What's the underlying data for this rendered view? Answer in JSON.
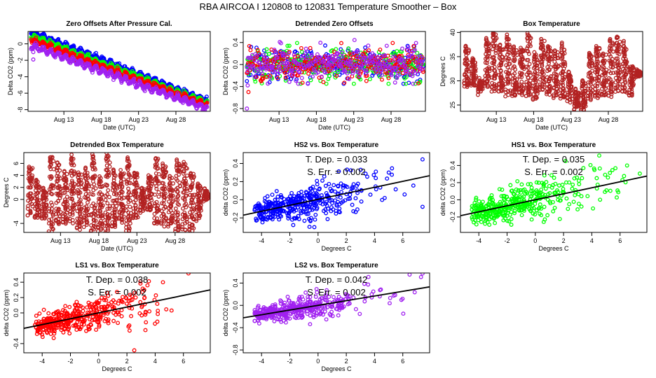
{
  "page": {
    "title": "RBA   AIRCOA I   120808 to 120831   Temperature Smoother – Box"
  },
  "colors": {
    "HS2": "#0000ff",
    "HS1": "#00ff00",
    "LS1": "#ff0000",
    "LS2": "#a020f0",
    "box_temperature": "#b22222",
    "fit_line": "#000000"
  },
  "chart_data": [
    {
      "id": "zero-offsets",
      "type": "scatter",
      "title": "Zero Offsets After Pressure Cal.",
      "xlabel": "Date (UTC)",
      "ylabel": "Delta CO2 (ppm)",
      "x_kind": "date",
      "xlim": [
        8.2,
        32.6
      ],
      "ylim": [
        -8.2,
        1.5
      ],
      "xticks": [
        13,
        18,
        23,
        28
      ],
      "xtick_labels": [
        "Aug 13",
        "Aug 18",
        "Aug 23",
        "Aug 28"
      ],
      "yticks": [
        -8,
        -6,
        -4,
        -2,
        0
      ],
      "ytick_labels": [
        "-8",
        "-6",
        "-4",
        "-2",
        "0"
      ],
      "series": [
        {
          "name": "HS2",
          "color_key": "HS2",
          "trend": {
            "start": 1.1,
            "end": -7.3
          },
          "diurnal_amp": 0.25,
          "offset": 0.35
        },
        {
          "name": "HS1",
          "color_key": "HS1",
          "trend": {
            "start": 0.8,
            "end": -7.4
          },
          "diurnal_amp": 0.25,
          "offset": 0.15
        },
        {
          "name": "LS1",
          "color_key": "LS1",
          "trend": {
            "start": 0.5,
            "end": -7.5
          },
          "diurnal_amp": 0.25,
          "offset": 0.0
        },
        {
          "name": "LS2",
          "color_key": "LS2",
          "trend": {
            "start": 0.0,
            "end": -7.7
          },
          "diurnal_amp": 0.3,
          "offset": -0.2
        }
      ],
      "outliers": [
        {
          "series": "LS2",
          "x": 8.9,
          "y": -1.9
        },
        {
          "series": "LS2",
          "x": 8.9,
          "y": -1.0
        }
      ]
    },
    {
      "id": "detrended-zero-offsets",
      "type": "scatter",
      "title": "Detrended Zero Offsets",
      "xlabel": "Date (UTC)",
      "ylabel": "Delta CO2 (ppm)",
      "x_kind": "date",
      "xlim": [
        8.2,
        32.6
      ],
      "ylim": [
        -0.85,
        0.6
      ],
      "xticks": [
        13,
        18,
        23,
        28
      ],
      "xtick_labels": [
        "Aug 13",
        "Aug 18",
        "Aug 23",
        "Aug 28"
      ],
      "yticks": [
        -0.8,
        -0.4,
        0.0,
        0.4
      ],
      "ytick_labels": [
        "-0.8",
        "-0.4",
        "0.0",
        "0.4"
      ],
      "series": [
        {
          "name": "HS2",
          "color_key": "HS2",
          "spread": 0.2
        },
        {
          "name": "HS1",
          "color_key": "HS1",
          "spread": 0.2
        },
        {
          "name": "LS1",
          "color_key": "LS1",
          "spread": 0.18
        },
        {
          "name": "LS2",
          "color_key": "LS2",
          "spread": 0.2
        }
      ],
      "outliers": [
        {
          "series": "LS2",
          "x": 8.7,
          "y": -0.8
        },
        {
          "series": "LS1",
          "x": 8.9,
          "y": -0.5
        },
        {
          "series": "LS2",
          "x": 8.8,
          "y": -0.38
        }
      ]
    },
    {
      "id": "box-temperature",
      "type": "scatter",
      "title": "Box Temperature",
      "xlabel": "Date (UTC)",
      "ylabel": "Degrees C",
      "x_kind": "date",
      "xlim": [
        8.2,
        32.6
      ],
      "ylim": [
        23.7,
        40.2
      ],
      "xticks": [
        13,
        18,
        23,
        28
      ],
      "xtick_labels": [
        "Aug 13",
        "Aug 18",
        "Aug 23",
        "Aug 28"
      ],
      "yticks": [
        25,
        30,
        35,
        40
      ],
      "ytick_labels": [
        "25",
        "30",
        "35",
        "40"
      ],
      "daily_min": [
        29,
        29,
        28,
        29,
        28,
        28,
        27.5,
        27,
        27.5,
        27,
        26,
        28,
        27.5,
        27,
        26.5,
        26,
        24.5,
        24,
        26.5,
        26.5,
        27,
        27,
        28,
        27.5,
        27,
        31
      ],
      "daily_max": [
        37,
        34.5,
        30,
        38.5,
        40,
        37,
        39,
        37,
        36.5,
        39.5,
        35.5,
        38.5,
        37,
        36,
        37.5,
        31.5,
        28,
        30,
        35.5,
        37,
        35.5,
        38.5,
        39,
        37.5,
        33,
        32
      ]
    },
    {
      "id": "detrended-box-temperature",
      "type": "scatter",
      "title": "Detrended Box Temperature",
      "xlabel": "Date (UTC)",
      "ylabel": "Degrees C",
      "x_kind": "date",
      "xlim": [
        8.2,
        32.6
      ],
      "ylim": [
        -5.5,
        7.8
      ],
      "xticks": [
        13,
        18,
        23,
        28
      ],
      "xtick_labels": [
        "Aug 13",
        "Aug 18",
        "Aug 23",
        "Aug 28"
      ],
      "yticks": [
        -4,
        0,
        2,
        4,
        6
      ],
      "ytick_labels": [
        "-4",
        "0",
        "2",
        "4",
        "6"
      ],
      "daily_min": [
        -2.5,
        -3,
        -3,
        -5,
        -4,
        -4,
        -3.5,
        -5,
        -4,
        -5,
        -5,
        -5,
        -4.5,
        -3.5,
        -5,
        -3,
        -1.8,
        -1.8,
        -4,
        -4,
        -4,
        -5,
        -5,
        -5,
        -3,
        0
      ],
      "daily_max": [
        5.3,
        3.2,
        1.5,
        7.3,
        6,
        4.5,
        7,
        4.2,
        5,
        7.2,
        3.6,
        7.5,
        5,
        4.5,
        7,
        4.4,
        1.8,
        3.8,
        7,
        5.8,
        3.6,
        6.3,
        6,
        4.4,
        2.4,
        1.5
      ]
    },
    {
      "id": "hs2-vs-box-temperature",
      "type": "scatter",
      "title": "HS2 vs. Box Temperature",
      "xlabel": "Degrees C",
      "ylabel": "delta CO2 (ppm)",
      "color_key": "HS2",
      "xlim": [
        -5.3,
        7.9
      ],
      "ylim": [
        -0.36,
        0.52
      ],
      "xticks": [
        -4,
        -2,
        0,
        2,
        4,
        6
      ],
      "xtick_labels": [
        "-4",
        "-2",
        "0",
        "2",
        "4",
        "6"
      ],
      "yticks": [
        -0.2,
        0.0,
        0.2,
        0.4
      ],
      "ytick_labels": [
        "-0.2",
        "0.0",
        "0.2",
        "0.4"
      ],
      "fit": {
        "slope": 0.033,
        "intercept": 0.005
      },
      "scatter_sd": 0.09,
      "annotations": [
        "T. Dep. =  0.033",
        "S. Err. =  0.002"
      ]
    },
    {
      "id": "hs1-vs-box-temperature",
      "type": "scatter",
      "title": "HS1 vs. Box Temperature",
      "xlabel": "Degrees C",
      "ylabel": "delta CO2 (ppm)",
      "color_key": "HS1",
      "xlim": [
        -5.3,
        7.9
      ],
      "ylim": [
        -0.38,
        0.55
      ],
      "xticks": [
        -4,
        -2,
        0,
        2,
        4,
        6
      ],
      "xtick_labels": [
        "-4",
        "-2",
        "0",
        "2",
        "4",
        "6"
      ],
      "yticks": [
        -0.2,
        0.0,
        0.2,
        0.4
      ],
      "ytick_labels": [
        "-0.2",
        "0.0",
        "0.2",
        "0.4"
      ],
      "fit": {
        "slope": 0.035,
        "intercept": 0.0
      },
      "scatter_sd": 0.09,
      "annotations": [
        "T. Dep. =  0.035",
        "S. Err. =  0.002"
      ]
    },
    {
      "id": "ls1-vs-box-temperature",
      "type": "scatter",
      "title": "LS1 vs. Box Temperature",
      "xlabel": "Degrees C",
      "ylabel": "delta CO2 (ppm)",
      "color_key": "LS1",
      "xlim": [
        -5.3,
        7.9
      ],
      "ylim": [
        -0.52,
        0.52
      ],
      "xticks": [
        -4,
        -2,
        0,
        2,
        4,
        6
      ],
      "xtick_labels": [
        "-4",
        "-2",
        "0",
        "2",
        "4",
        "6"
      ],
      "yticks": [
        -0.4,
        0.0,
        0.2,
        0.4
      ],
      "ytick_labels": [
        "-0.4",
        "0.0",
        "0.2",
        "0.4"
      ],
      "fit": {
        "slope": 0.038,
        "intercept": 0.0
      },
      "scatter_sd": 0.09,
      "annotations": [
        "T. Dep. =  0.038",
        "S. Err. =  0.002"
      ]
    },
    {
      "id": "ls2-vs-box-temperature",
      "type": "scatter",
      "title": "LS2 vs. Box Temperature",
      "xlabel": "Degrees C",
      "ylabel": "delta CO2 (ppm)",
      "color_key": "LS2",
      "xlim": [
        -5.3,
        7.9
      ],
      "ylim": [
        -0.85,
        0.58
      ],
      "xticks": [
        -4,
        -2,
        0,
        2,
        4,
        6
      ],
      "xtick_labels": [
        "-4",
        "-2",
        "0",
        "2",
        "4",
        "6"
      ],
      "yticks": [
        -0.8,
        -0.4,
        0.0,
        0.4
      ],
      "ytick_labels": [
        "-0.8",
        "-0.4",
        "0.0",
        "0.4"
      ],
      "fit": {
        "slope": 0.042,
        "intercept": 0.0
      },
      "scatter_sd": 0.1,
      "annotations": [
        "T. Dep. =  0.042",
        "S. Err. =  0.002"
      ]
    }
  ]
}
